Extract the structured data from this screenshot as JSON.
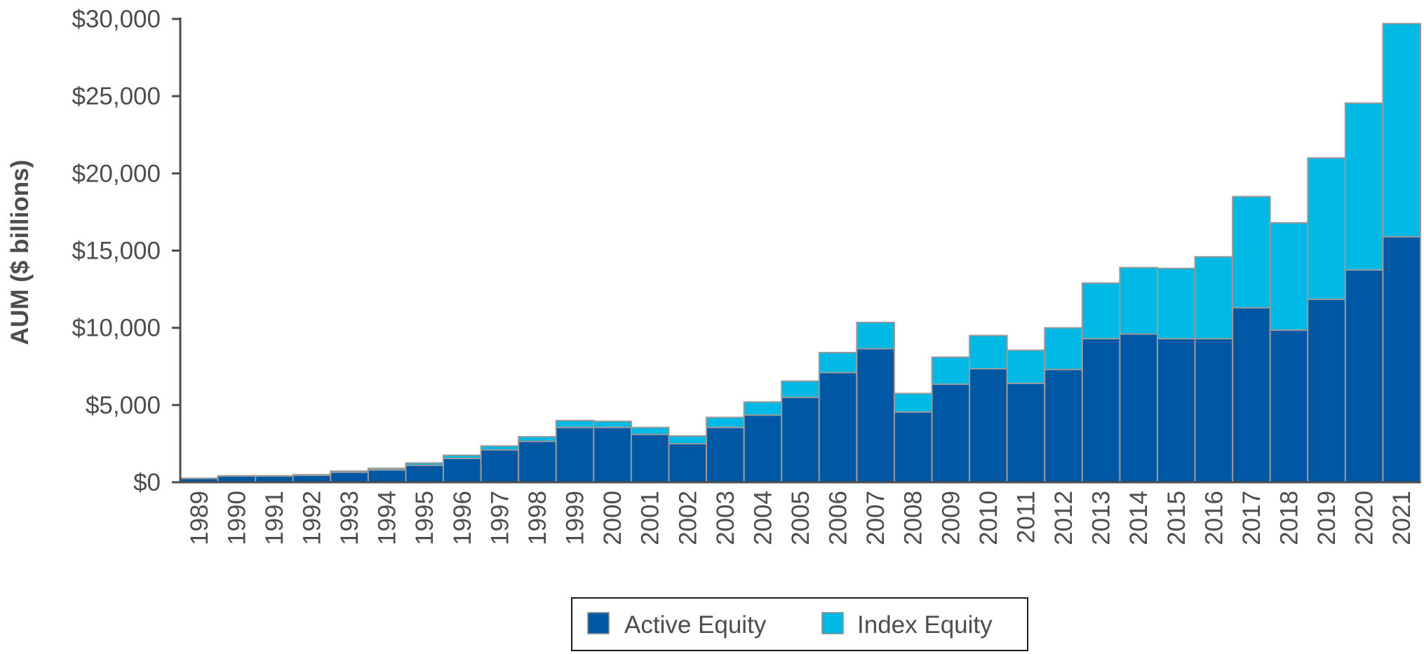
{
  "chart_data": {
    "type": "bar",
    "stacked": true,
    "title": "",
    "xlabel": "",
    "ylabel": "AUM ($ billions)",
    "ylim": [
      0,
      30000
    ],
    "y_ticks": [
      0,
      5000,
      10000,
      15000,
      20000,
      25000,
      30000
    ],
    "y_tick_labels": [
      "$0",
      "$5,000",
      "$10,000",
      "$15,000",
      "$20,000",
      "$25,000",
      "$30,000"
    ],
    "grid": false,
    "legend_position": "bottom",
    "categories": [
      "1989",
      "1990",
      "1991",
      "1992",
      "1993",
      "1994",
      "1995",
      "1996",
      "1997",
      "1998",
      "1999",
      "2000",
      "2001",
      "2002",
      "2003",
      "2004",
      "2005",
      "2006",
      "2007",
      "2008",
      "2009",
      "2010",
      "2011",
      "2012",
      "2013",
      "2014",
      "2015",
      "2016",
      "2017",
      "2018",
      "2019",
      "2020",
      "2021"
    ],
    "series": [
      {
        "name": "Active Equity",
        "color": "#0057a3",
        "values": [
          250,
          400,
          400,
          450,
          650,
          800,
          1100,
          1550,
          2100,
          2650,
          3550,
          3550,
          3100,
          2500,
          3550,
          4350,
          5500,
          7100,
          8650,
          4550,
          6350,
          7350,
          6400,
          7300,
          9300,
          9600,
          9300,
          9300,
          11300,
          9850,
          11850,
          13750,
          15900
        ]
      },
      {
        "name": "Index Equity",
        "color": "#00b9e4",
        "values": [
          10,
          20,
          20,
          40,
          70,
          100,
          150,
          200,
          250,
          300,
          450,
          400,
          450,
          500,
          650,
          850,
          1050,
          1300,
          1700,
          1200,
          1750,
          2150,
          2150,
          2700,
          3600,
          4300,
          4550,
          5300,
          7200,
          6950,
          9150,
          10800,
          13800
        ]
      }
    ]
  }
}
